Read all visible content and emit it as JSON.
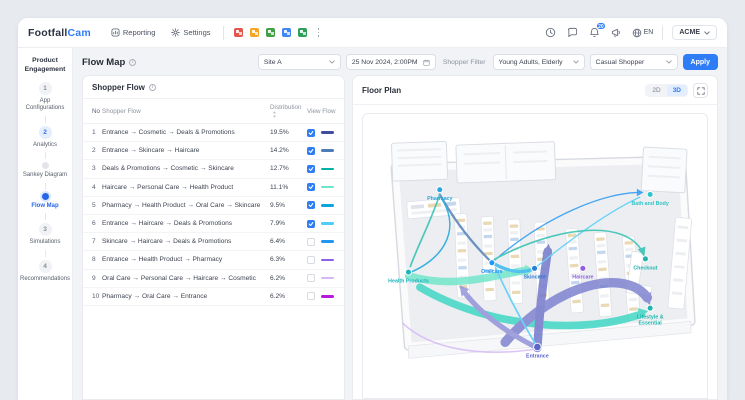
{
  "navbar": {
    "logo_part1": "Footfall",
    "logo_part2": "Cam",
    "menu": {
      "reporting": "Reporting",
      "settings": "Settings"
    },
    "app_icons": [
      {
        "name": "red-app-icon",
        "color": "#e2574c"
      },
      {
        "name": "orange-app-icon",
        "color": "#f5a623"
      },
      {
        "name": "green-app-icon",
        "color": "#43a047"
      },
      {
        "name": "blue-app-icon",
        "color": "#4285f4"
      },
      {
        "name": "teal-app-icon",
        "color": "#2e9e5b"
      }
    ],
    "notification_count": "20",
    "language": "EN",
    "account": "ACME"
  },
  "sidebar": {
    "title": "Product Engagement",
    "steps": [
      {
        "num": "1",
        "label": "App Configurations"
      },
      {
        "num": "2",
        "label": "Analytics"
      },
      {
        "num": "",
        "label": "Sankey Diagram"
      },
      {
        "num": "",
        "label": "Flow Map"
      },
      {
        "num": "3",
        "label": "Simulations"
      },
      {
        "num": "4",
        "label": "Recommendations"
      }
    ]
  },
  "toolbar": {
    "title": "Flow Map",
    "site_select": "Site A",
    "datetime": "25 Nov 2024, 2:00PM",
    "filter_label": "Shopper Filter",
    "demographic_select": "Young Adults, Elderly",
    "shopper_type_select": "Casual Shopper",
    "apply_label": "Apply"
  },
  "shopper_flow": {
    "title": "Shopper Flow",
    "columns": {
      "no": "No",
      "flow": "Shopper Flow",
      "distribution": "Distribution",
      "view": "View Flow"
    },
    "rows": [
      {
        "no": "1",
        "flow": "Entrance → Cosmetic → Deals & Promotions",
        "distribution": "19.5%",
        "checked": true,
        "color": "#3f4d9e"
      },
      {
        "no": "2",
        "flow": "Entrance → Skincare → Haircare",
        "distribution": "14.2%",
        "checked": true,
        "color": "#4f7cb5"
      },
      {
        "no": "3",
        "flow": "Deals & Promotions → Cosmetic → Skincare",
        "distribution": "12.7%",
        "checked": true,
        "color": "#00b3a8"
      },
      {
        "no": "4",
        "flow": "Haircare → Personal Care → Health Product",
        "distribution": "11.1%",
        "checked": true,
        "color": "#6fe6c9"
      },
      {
        "no": "5",
        "flow": "Pharmacy → Health Product → Oral Care → Skincare",
        "distribution": "9.5%",
        "checked": true,
        "color": "#0da4dc"
      },
      {
        "no": "6",
        "flow": "Entrance → Haircare → Deals & Promotions",
        "distribution": "7.9%",
        "checked": true,
        "color": "#4ecdf6"
      },
      {
        "no": "7",
        "flow": "Skincare → Haircare → Deals & Promotions",
        "distribution": "6.4%",
        "checked": false,
        "color": "#2196f3"
      },
      {
        "no": "8",
        "flow": "Entrance → Health Product → Pharmacy",
        "distribution": "6.3%",
        "checked": false,
        "color": "#8a63e8"
      },
      {
        "no": "9",
        "flow": "Oral Care → Personal Care → Haircare → Cosmetic",
        "distribution": "6.2%",
        "checked": false,
        "color": "#d4b9f5"
      },
      {
        "no": "10",
        "flow": "Pharmacy → Oral Care → Entrance",
        "distribution": "6.2%",
        "checked": false,
        "color": "#b41ad8"
      }
    ]
  },
  "floor_plan": {
    "title": "Floor Plan",
    "toggle_2d": "2D",
    "toggle_3d": "3D",
    "active_view": "3D",
    "nodes": [
      {
        "id": "pharmacy",
        "lines": [
          "Pharmacy"
        ],
        "color": "#29a8dc"
      },
      {
        "id": "bath-and-body",
        "lines": [
          "Bath and Body"
        ],
        "color": "#2fc4c9"
      },
      {
        "id": "health-products",
        "lines": [
          "Health Products"
        ],
        "color": "#1fb5c0"
      },
      {
        "id": "oralcare",
        "lines": [
          "Oralcare"
        ],
        "color": "#2196f3"
      },
      {
        "id": "skincare",
        "lines": [
          "Skincare"
        ],
        "color": "#2a7fd4"
      },
      {
        "id": "haircare",
        "lines": [
          "Haircare"
        ],
        "color": "#8f5fe0"
      },
      {
        "id": "checkout",
        "lines": [
          "Checkout"
        ],
        "color": "#1fb5ad"
      },
      {
        "id": "lifestyle",
        "lines": [
          "Lifestyle &",
          "Essential"
        ],
        "color": "#1fb5ad"
      },
      {
        "id": "entrance",
        "lines": [
          "Entrance"
        ],
        "color": "#5c66c9"
      }
    ],
    "flows": [
      {
        "color": "#6fe6c9",
        "width": 8
      },
      {
        "color": "#3ad6c3",
        "width": 8
      },
      {
        "color": "#7b80cf",
        "width": 10
      },
      {
        "color": "#6f74c9",
        "width": 9
      },
      {
        "color": "#8f8fd8",
        "width": 5.5
      },
      {
        "color": "#4f7cb5",
        "width": 2.4
      },
      {
        "color": "#2bbfae",
        "width": 1.8
      },
      {
        "color": "#2196f3",
        "width": 1.4
      },
      {
        "color": "#4ecdf6",
        "width": 1.4
      },
      {
        "color": "#2bbfae",
        "width": 1.7
      },
      {
        "color": "#4ecdf6",
        "width": 1.8
      },
      {
        "color": "#d4b9f5",
        "width": 1.7
      },
      {
        "color": "#31b6ee",
        "width": 3.4
      },
      {
        "color": "#0da4dc",
        "width": 1.6
      }
    ]
  }
}
